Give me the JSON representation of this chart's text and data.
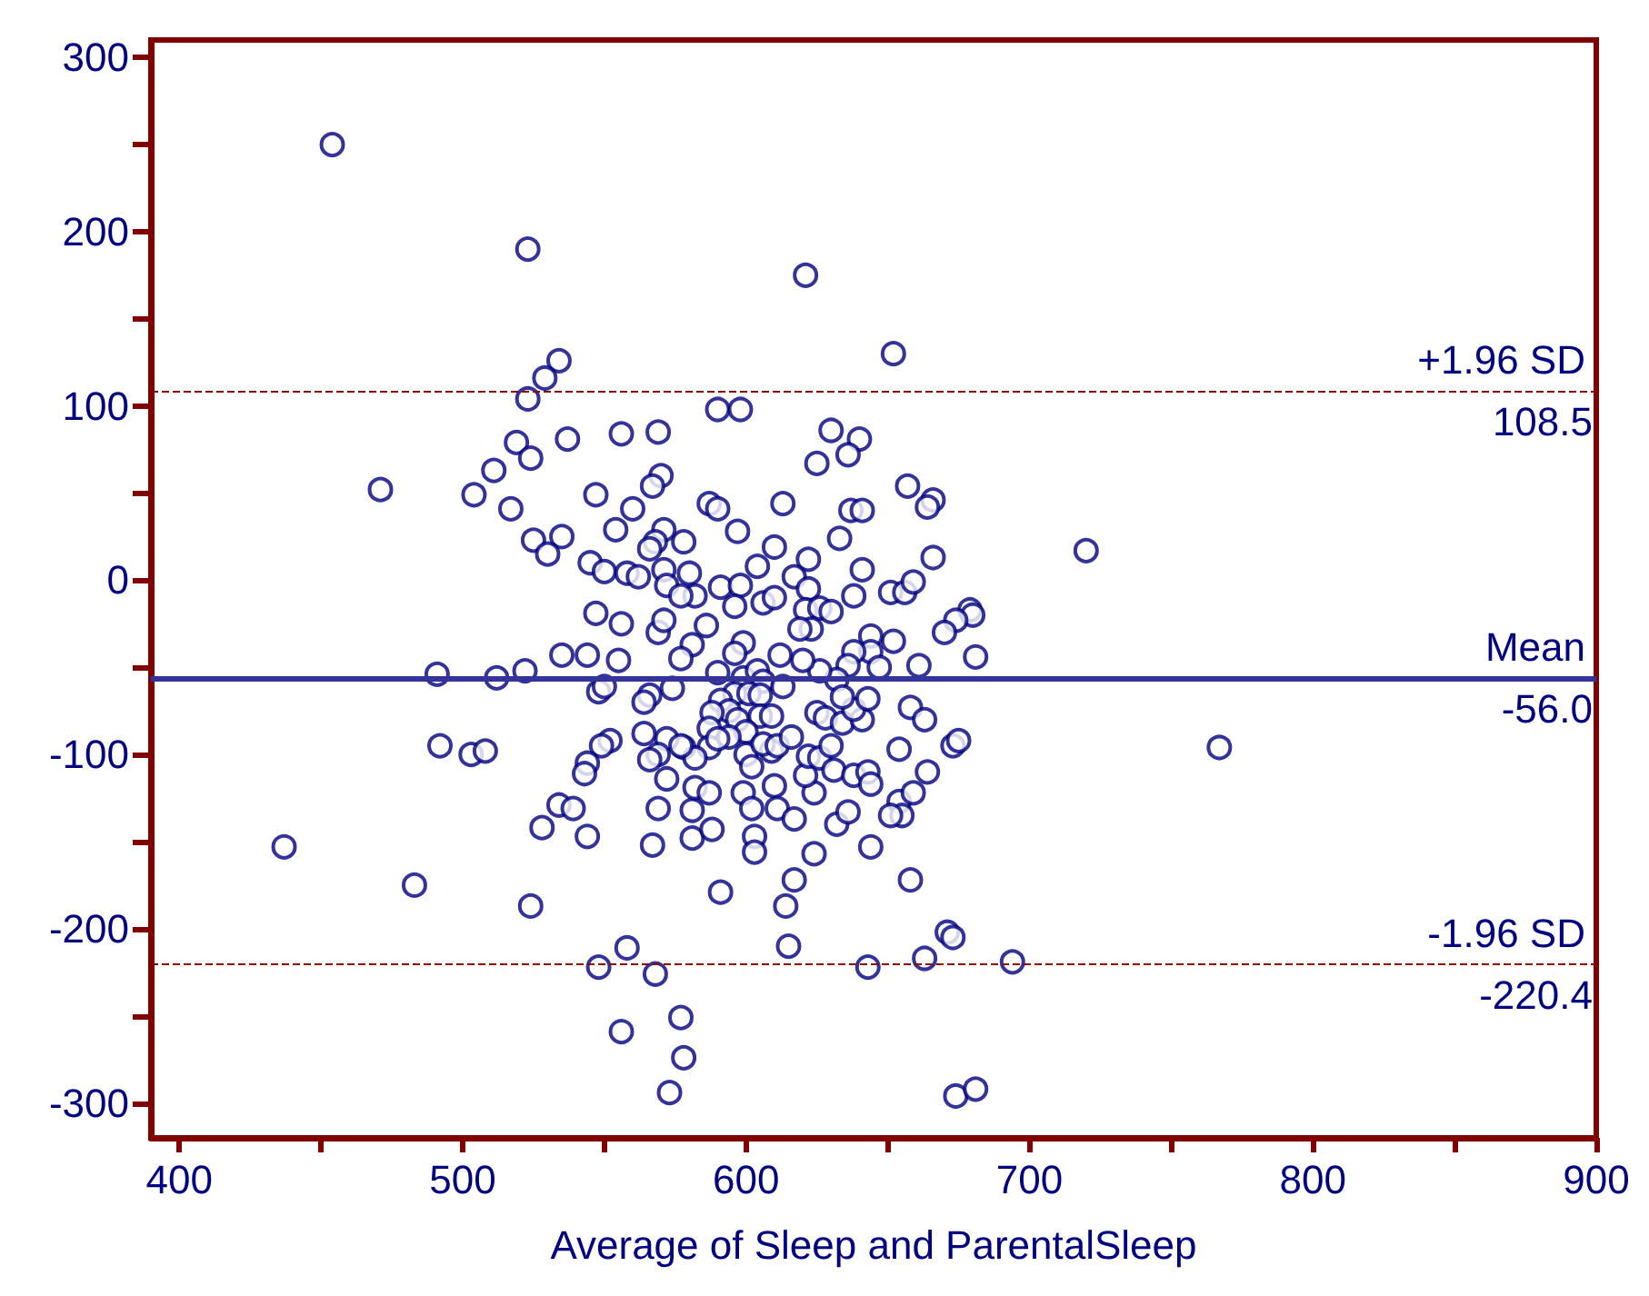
{
  "chart_data": {
    "type": "scatter",
    "xlabel": "Average of Sleep and ParentalSleep",
    "xlim": [
      390,
      900
    ],
    "xticks": [
      400,
      {
        "value": 450,
        "label": null
      },
      500,
      {
        "value": 550,
        "label": null
      },
      600,
      {
        "value": 650,
        "label": null
      },
      700,
      {
        "value": 750,
        "label": null
      },
      800,
      {
        "value": 850,
        "label": null
      },
      900
    ],
    "ylim": [
      -320,
      310
    ],
    "yticks": [
      -300,
      {
        "value": -250,
        "label": null
      },
      -200,
      {
        "value": -150,
        "label": null
      },
      -100,
      {
        "value": -50,
        "label": null
      },
      0,
      {
        "value": 50,
        "label": null
      },
      100,
      {
        "value": 150,
        "label": null
      },
      200,
      {
        "value": 250,
        "label": null
      },
      300
    ],
    "grid": false,
    "marker": "circle",
    "series": [
      {
        "color": "#000080",
        "x": [
          454,
          523,
          621,
          652,
          534,
          529,
          523,
          590,
          598,
          569,
          556,
          537,
          519,
          524,
          630,
          640,
          636,
          625,
          511,
          570,
          567,
          471,
          657,
          666,
          664,
          504,
          547,
          587,
          590,
          613,
          637,
          641,
          517,
          560,
          571,
          554,
          597,
          578,
          535,
          525,
          530,
          633,
          568,
          566,
          720,
          610,
          545,
          550,
          558,
          562,
          571,
          580,
          604,
          622,
          641,
          666,
          572,
          582,
          577,
          591,
          598,
          596,
          606,
          610,
          617,
          622,
          621,
          626,
          630,
          638,
          651,
          656,
          659,
          679,
          680,
          674,
          670,
          681,
          661,
          652,
          644,
          644,
          638,
          647,
          636,
          632,
          626,
          620,
          623,
          619,
          612,
          599,
          596,
          586,
          581,
          577,
          569,
          571,
          556,
          547,
          535,
          544,
          555,
          491,
          512,
          522,
          548,
          550,
          566,
          574,
          564,
          590,
          599,
          604,
          606,
          613,
          596,
          601,
          605,
          591,
          594,
          597,
          588,
          587,
          605,
          609,
          600,
          594,
          587,
          590,
          578,
          572,
          564,
          569,
          566,
          572,
          582,
          577,
          552,
          549,
          544,
          543,
          534,
          539,
          528,
          544,
          492,
          503,
          508,
          437,
          483,
          524,
          569,
          567,
          581,
          582,
          587,
          581,
          588,
          591,
          600,
          602,
          599,
          602,
          603,
          603,
          610,
          611,
          609,
          606,
          611,
          616,
          617,
          614,
          617,
          615,
          624,
          624,
          621,
          622,
          626,
          625,
          628,
          630,
          631,
          632,
          636,
          638,
          643,
          644,
          634,
          641,
          638,
          634,
          643,
          644,
          654,
          655,
          651,
          659,
          664,
          654,
          658,
          663,
          673,
          675,
          658,
          671,
          673,
          694,
          663,
          643,
          548,
          558,
          568,
          556,
          577,
          578,
          573,
          674,
          681,
          767
        ],
        "values": [
          250,
          190,
          175,
          130,
          126,
          116,
          104,
          98,
          98,
          85,
          84,
          81,
          79,
          70,
          86,
          81,
          72,
          67,
          63,
          60,
          54,
          52,
          54,
          46,
          42,
          49,
          49,
          44,
          41,
          44,
          40,
          40,
          41,
          41,
          29,
          29,
          28,
          22,
          25,
          23,
          15,
          24,
          22,
          18,
          17,
          19,
          10,
          5,
          4,
          2,
          6,
          4,
          8,
          12,
          6,
          13,
          -3,
          -9,
          -9,
          -4,
          -3,
          -15,
          -13,
          -10,
          2,
          -5,
          -17,
          -16,
          -18,
          -9,
          -7,
          -7,
          -1,
          -17,
          -20,
          -23,
          -30,
          -44,
          -49,
          -35,
          -32,
          -41,
          -41,
          -50,
          -49,
          -57,
          -52,
          -46,
          -28,
          -28,
          -43,
          -36,
          -42,
          -26,
          -37,
          -45,
          -30,
          -23,
          -25,
          -19,
          -43,
          -43,
          -46,
          -54,
          -56,
          -52,
          -64,
          -61,
          -66,
          -62,
          -70,
          -53,
          -56,
          -52,
          -58,
          -61,
          -65,
          -65,
          -66,
          -69,
          -75,
          -80,
          -76,
          -85,
          -78,
          -78,
          -87,
          -90,
          -96,
          -91,
          -96,
          -91,
          -88,
          -100,
          -103,
          -114,
          -102,
          -95,
          -92,
          -95,
          -105,
          -111,
          -129,
          -131,
          -142,
          -147,
          -95,
          -100,
          -98,
          -153,
          -175,
          -187,
          -131,
          -152,
          -132,
          -119,
          -122,
          -148,
          -143,
          -179,
          -100,
          -107,
          -122,
          -131,
          -147,
          -156,
          -118,
          -131,
          -98,
          -94,
          -95,
          -90,
          -137,
          -187,
          -172,
          -210,
          -157,
          -122,
          -112,
          -101,
          -102,
          -76,
          -79,
          -95,
          -109,
          -140,
          -133,
          -112,
          -110,
          -117,
          -82,
          -80,
          -74,
          -67,
          -68,
          -153,
          -127,
          -135,
          -135,
          -122,
          -110,
          -97,
          -73,
          -80,
          -95,
          -92,
          -172,
          -202,
          -205,
          -219,
          -217,
          -222,
          -222,
          -211,
          -226,
          -259,
          -251,
          -274,
          -294,
          -296,
          -292,
          -96
        ]
      }
    ],
    "ref_lines": [
      {
        "axis": "y",
        "value": 108.5,
        "label": "+1.96 SD",
        "color": "#8b0000",
        "line_style": "dashed"
      },
      {
        "axis": "y",
        "value": -56.0,
        "label": "Mean",
        "color": "#333399",
        "line_style": "solid"
      },
      {
        "axis": "y",
        "value": -220.4,
        "label": "-1.96 SD",
        "color": "#8b0000",
        "line_style": "dashed"
      }
    ],
    "annotations": [
      {
        "text": "108.5",
        "y": 108.5
      },
      {
        "text": "-56.0",
        "y": -56.0
      },
      {
        "text": "-220.4",
        "y": -220.4
      }
    ]
  }
}
